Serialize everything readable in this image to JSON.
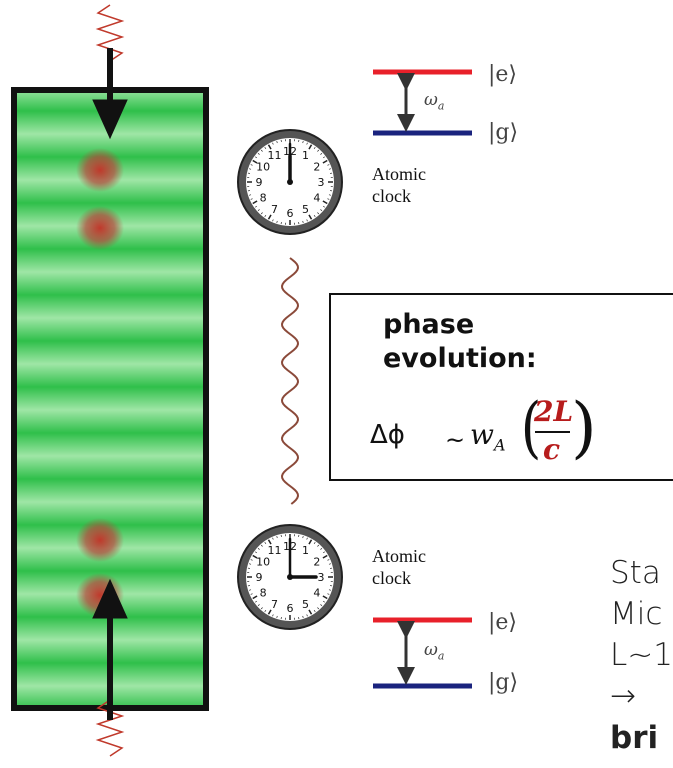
{
  "levels": {
    "excited": "|e⟩",
    "ground": "|g⟩",
    "splitting": "ω",
    "splitting_sub": "a"
  },
  "clock": {
    "label": "Atomic clock",
    "numerals": [
      "12",
      "1",
      "2",
      "3",
      "4",
      "5",
      "6",
      "7",
      "8",
      "9",
      "10",
      "11"
    ]
  },
  "box": {
    "title": "phase evolution:",
    "formula": {
      "lhs": "Δϕ",
      "relation": "~",
      "symbol": "w",
      "subscript": "A",
      "numerator": "2L",
      "denominator": "c"
    }
  },
  "side_text": [
    "Sta",
    "Mic",
    "L~1",
    "→",
    "bri"
  ]
}
